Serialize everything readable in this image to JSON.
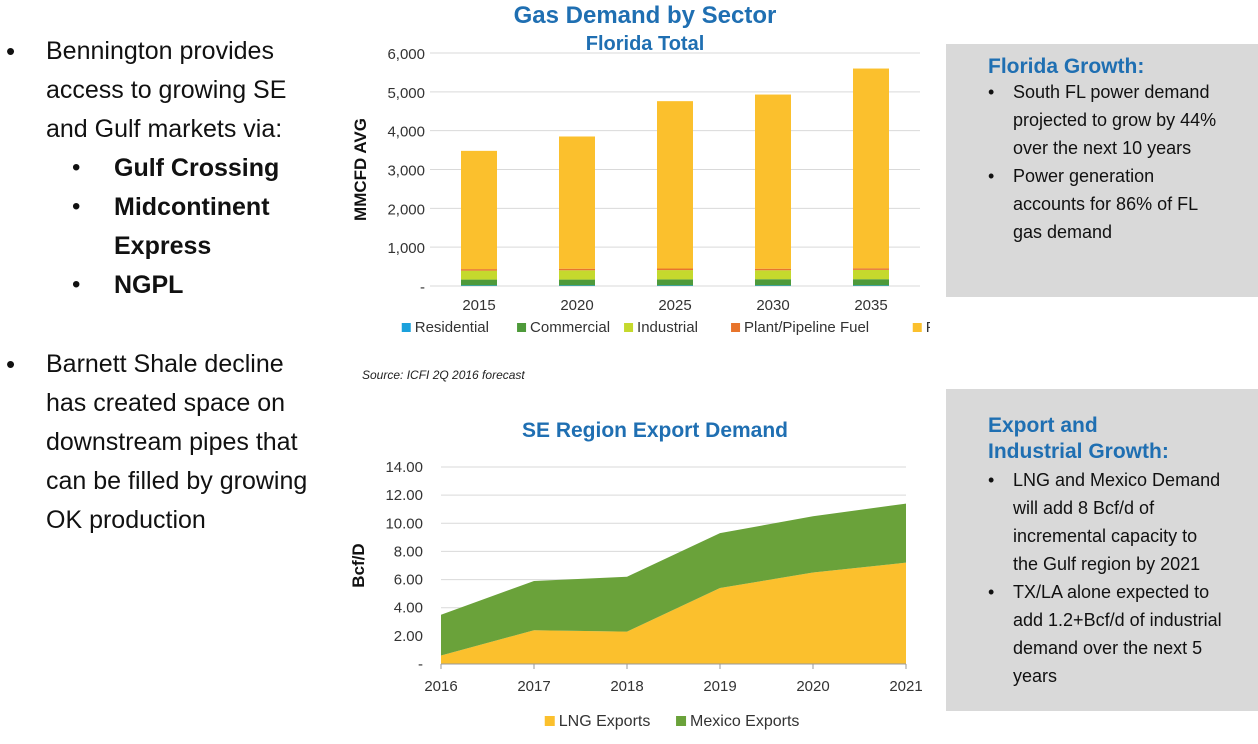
{
  "left": {
    "bullets": [
      {
        "lines": [
          "Bennington provides",
          "access to growing SE",
          "and Gulf markets via:"
        ]
      },
      {
        "lines": [
          "Barnett Shale decline",
          "has created space on",
          "downstream pipes that",
          "can be filled by growing",
          "OK production"
        ]
      }
    ],
    "pipelines": [
      "Gulf Crossing",
      "Midcontinent",
      "Express",
      "NGPL"
    ],
    "bullet_glyph": "•"
  },
  "chart_data": [
    {
      "type": "bar",
      "title": "Gas Demand by Sector",
      "subtitle": "Florida Total",
      "ylabel": "MMCFD AVG",
      "xlabel": "",
      "ylim": [
        0,
        6000
      ],
      "yticks": [
        "-",
        "1,000",
        "2,000",
        "3,000",
        "4,000",
        "5,000",
        "6,000"
      ],
      "categories": [
        "2015",
        "2020",
        "2025",
        "2030",
        "2035"
      ],
      "stacked": true,
      "series": [
        {
          "name": "Residential",
          "color": "#1ba1dc",
          "values": [
            15,
            15,
            15,
            15,
            15
          ]
        },
        {
          "name": "Commercial",
          "color": "#4e9a3a",
          "values": [
            150,
            150,
            155,
            160,
            160
          ]
        },
        {
          "name": "Industrial",
          "color": "#c5d92d",
          "values": [
            230,
            240,
            240,
            230,
            240
          ]
        },
        {
          "name": "Plant/Pipeline Fuel",
          "color": "#e8742b",
          "values": [
            40,
            40,
            40,
            40,
            40
          ]
        },
        {
          "name": "Power",
          "color": "#fbc02d",
          "values": [
            3045,
            3405,
            4310,
            4485,
            5145
          ]
        }
      ],
      "source": "Source: ICFI 2Q 2016 forecast"
    },
    {
      "type": "area",
      "title": "SE Region Export Demand",
      "ylabel": "Bcf/D",
      "xlabel": "",
      "ylim": [
        0,
        14
      ],
      "yticks": [
        "-",
        "2.00",
        "4.00",
        "6.00",
        "8.00",
        "10.00",
        "12.00",
        "14.00"
      ],
      "x": [
        "2016",
        "2017",
        "2018",
        "2019",
        "2020",
        "2021"
      ],
      "stacked": true,
      "series": [
        {
          "name": "LNG Exports",
          "color": "#fbc02d",
          "values": [
            0.6,
            2.4,
            2.3,
            5.4,
            6.5,
            7.2
          ]
        },
        {
          "name": "Mexico Exports",
          "color": "#6aa23a",
          "values": [
            2.9,
            3.5,
            3.9,
            3.9,
            4.0,
            4.2
          ]
        }
      ]
    }
  ],
  "panels": [
    {
      "title_lines": [
        "Florida Growth:"
      ],
      "items": [
        {
          "lines": [
            "South FL power demand",
            "projected to grow by 44%",
            "over the next 10 years"
          ]
        },
        {
          "lines": [
            "Power generation",
            "accounts for 86% of FL",
            "gas demand"
          ]
        }
      ]
    },
    {
      "title_lines": [
        "Export and",
        "Industrial Growth:"
      ],
      "items": [
        {
          "lines": [
            "LNG and Mexico Demand",
            "will add 8 Bcf/d of",
            "incremental capacity to",
            "the Gulf region by 2021"
          ]
        },
        {
          "lines": [
            "TX/LA alone expected to",
            "add 1.2+Bcf/d of industrial",
            "demand over the next 5",
            "years"
          ]
        }
      ]
    }
  ],
  "colors": {
    "title_blue": "#1f6fb2",
    "panel_bg": "#d9d9d9",
    "gridline": "#d9d9d9"
  }
}
